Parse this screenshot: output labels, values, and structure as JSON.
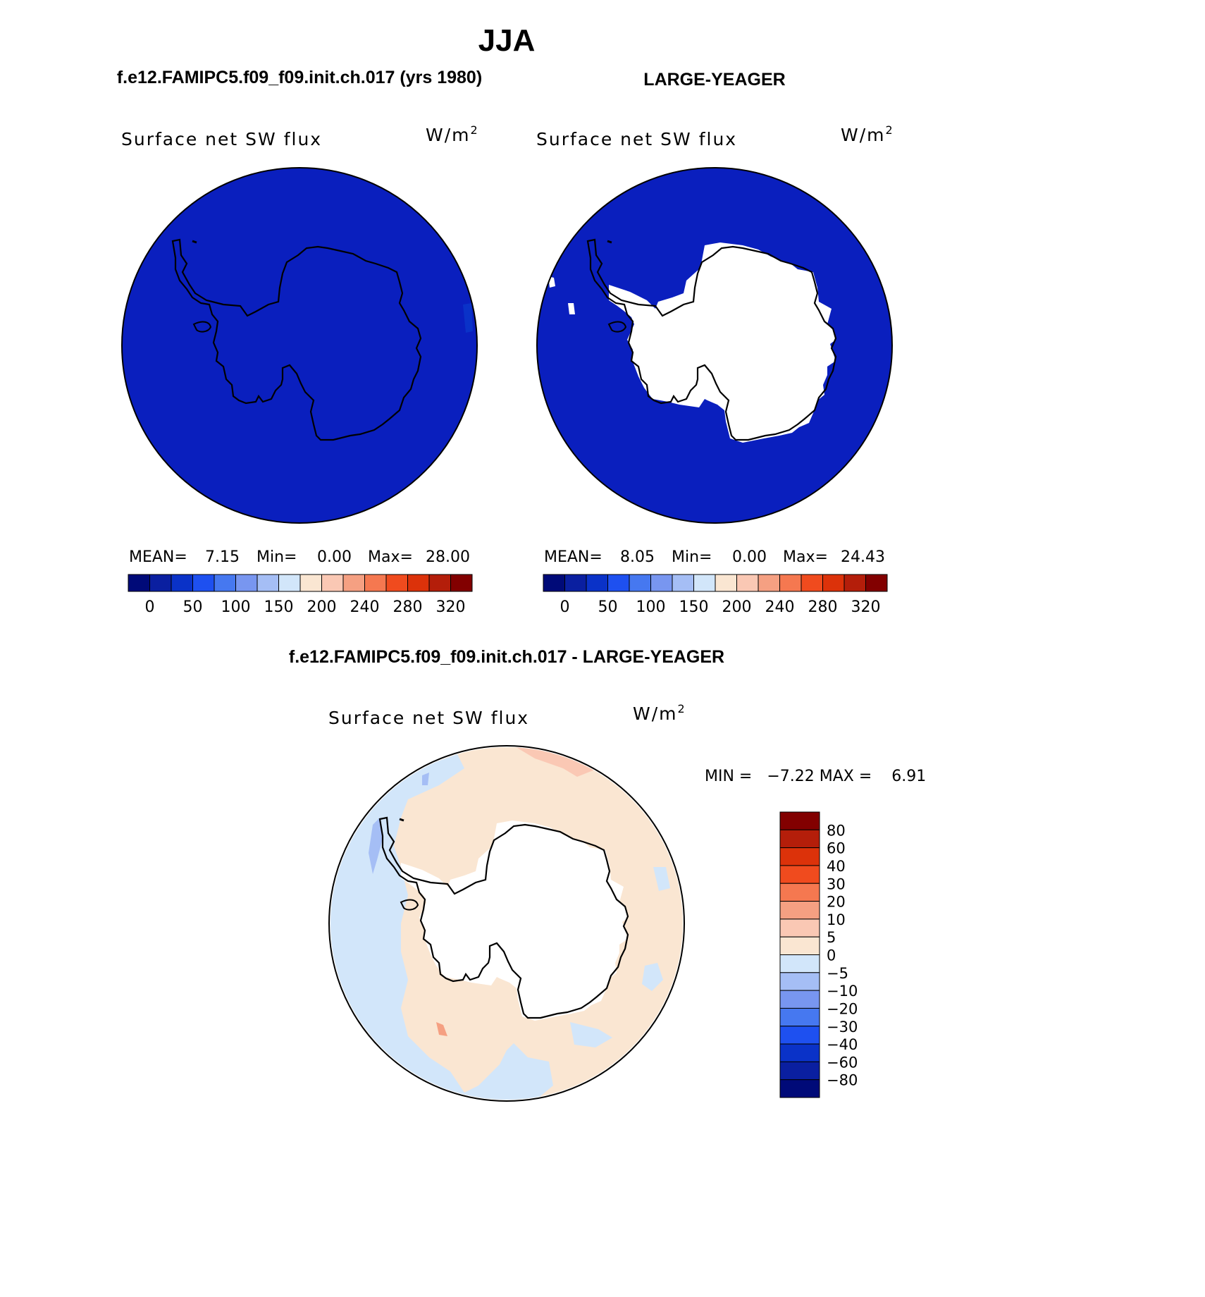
{
  "page": {
    "title": "JJA",
    "diff_title": "f.e12.FAMIPC5.f09_f09.init.ch.017 - LARGE-YEAGER"
  },
  "panels": [
    {
      "case_title": "f.e12.FAMIPC5.f09_f09.init.ch.017 (yrs 1980)",
      "variable": "Surface net SW flux",
      "units_base": "W/m",
      "units_exp": "2",
      "stats": {
        "mean_label": "MEAN=",
        "mean": "7.15",
        "min_label": "Min=",
        "min": "0.00",
        "max_label": "Max=",
        "max": "28.00"
      },
      "shows_ice_mask": false
    },
    {
      "case_title": "LARGE-YEAGER",
      "variable": "Surface net SW flux",
      "units_base": "W/m",
      "units_exp": "2",
      "stats": {
        "mean_label": "MEAN=",
        "mean": "8.05",
        "min_label": "Min=",
        "min": "0.00",
        "max_label": "Max=",
        "max": "24.43"
      },
      "shows_ice_mask": true
    }
  ],
  "diff_panel": {
    "variable": "Surface net SW flux",
    "units_base": "W/m",
    "units_exp": "2",
    "stats_text": "MIN =   −7.22 MAX =    6.91"
  },
  "colorbar_main": {
    "colors": [
      "#000a78",
      "#0a1fa0",
      "#0a32c8",
      "#1e50f0",
      "#4678f0",
      "#7896f0",
      "#a5bef5",
      "#d2e6fa",
      "#fae6d2",
      "#fac8b4",
      "#f5a082",
      "#f57850",
      "#f04b1e",
      "#dc320a",
      "#b41e0a",
      "#820000"
    ],
    "labels": [
      "0",
      "50",
      "100",
      "150",
      "200",
      "240",
      "280",
      "320"
    ]
  },
  "colorbar_diff": {
    "colors": [
      "#820000",
      "#b41e0a",
      "#dc320a",
      "#f04b1e",
      "#f57850",
      "#f5a082",
      "#fac8b4",
      "#fae6d2",
      "#d2e6fa",
      "#a5bef5",
      "#7896f0",
      "#4678f0",
      "#1e50f0",
      "#0a32c8",
      "#0a1fa0",
      "#000a78"
    ],
    "labels": [
      "80",
      "60",
      "40",
      "30",
      "20",
      "10",
      "5",
      "0",
      "−5",
      "−10",
      "−20",
      "−30",
      "−40",
      "−60",
      "−80"
    ]
  },
  "map_colors": {
    "ocean_dark_blue": "#0a1fbe",
    "light_blue": "#d2e6fa",
    "mid_blue": "#a5bef5",
    "peach": "#fae6d2",
    "salmon": "#fac8b4",
    "land": "#ffffff"
  }
}
